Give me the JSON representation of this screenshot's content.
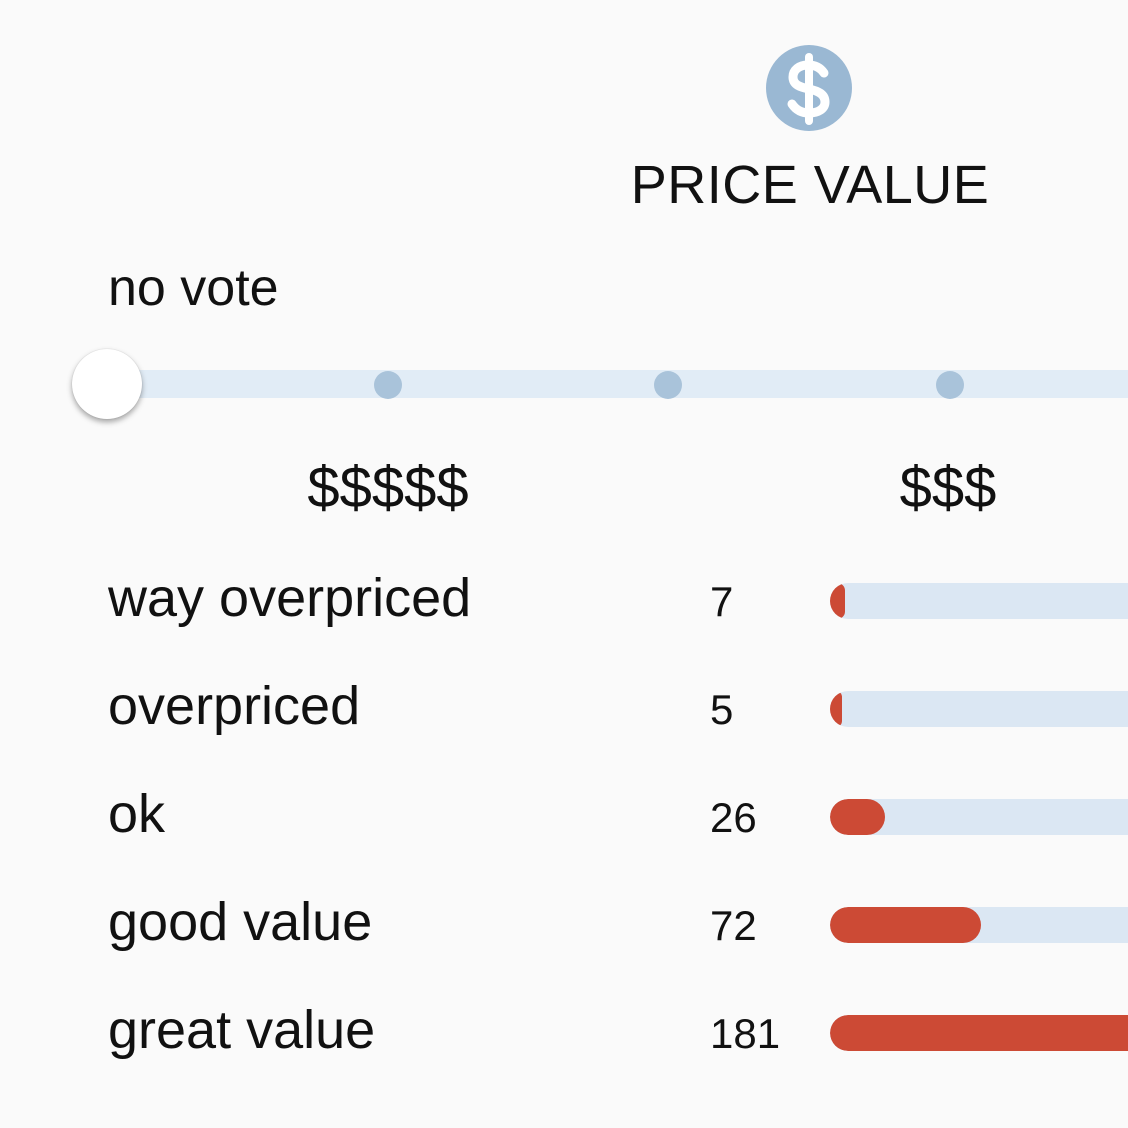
{
  "section": {
    "title": "PRICE VALUE",
    "icon": "dollar-circle-icon",
    "icon_color": "#9ab8d3"
  },
  "vote": {
    "label": "no vote",
    "selected_index": 0,
    "stop_count": 4
  },
  "scale": {
    "labels": [
      "$$$$$",
      "$$$"
    ]
  },
  "ratings": {
    "max": 181,
    "fill_color": "#cc4a35",
    "track_color": "#dbe7f3",
    "items": [
      {
        "label": "way overpriced",
        "count": "7"
      },
      {
        "label": "overpriced",
        "count": "5"
      },
      {
        "label": "ok",
        "count": "26"
      },
      {
        "label": "good value",
        "count": "72"
      },
      {
        "label": "great value",
        "count": "181"
      }
    ]
  }
}
